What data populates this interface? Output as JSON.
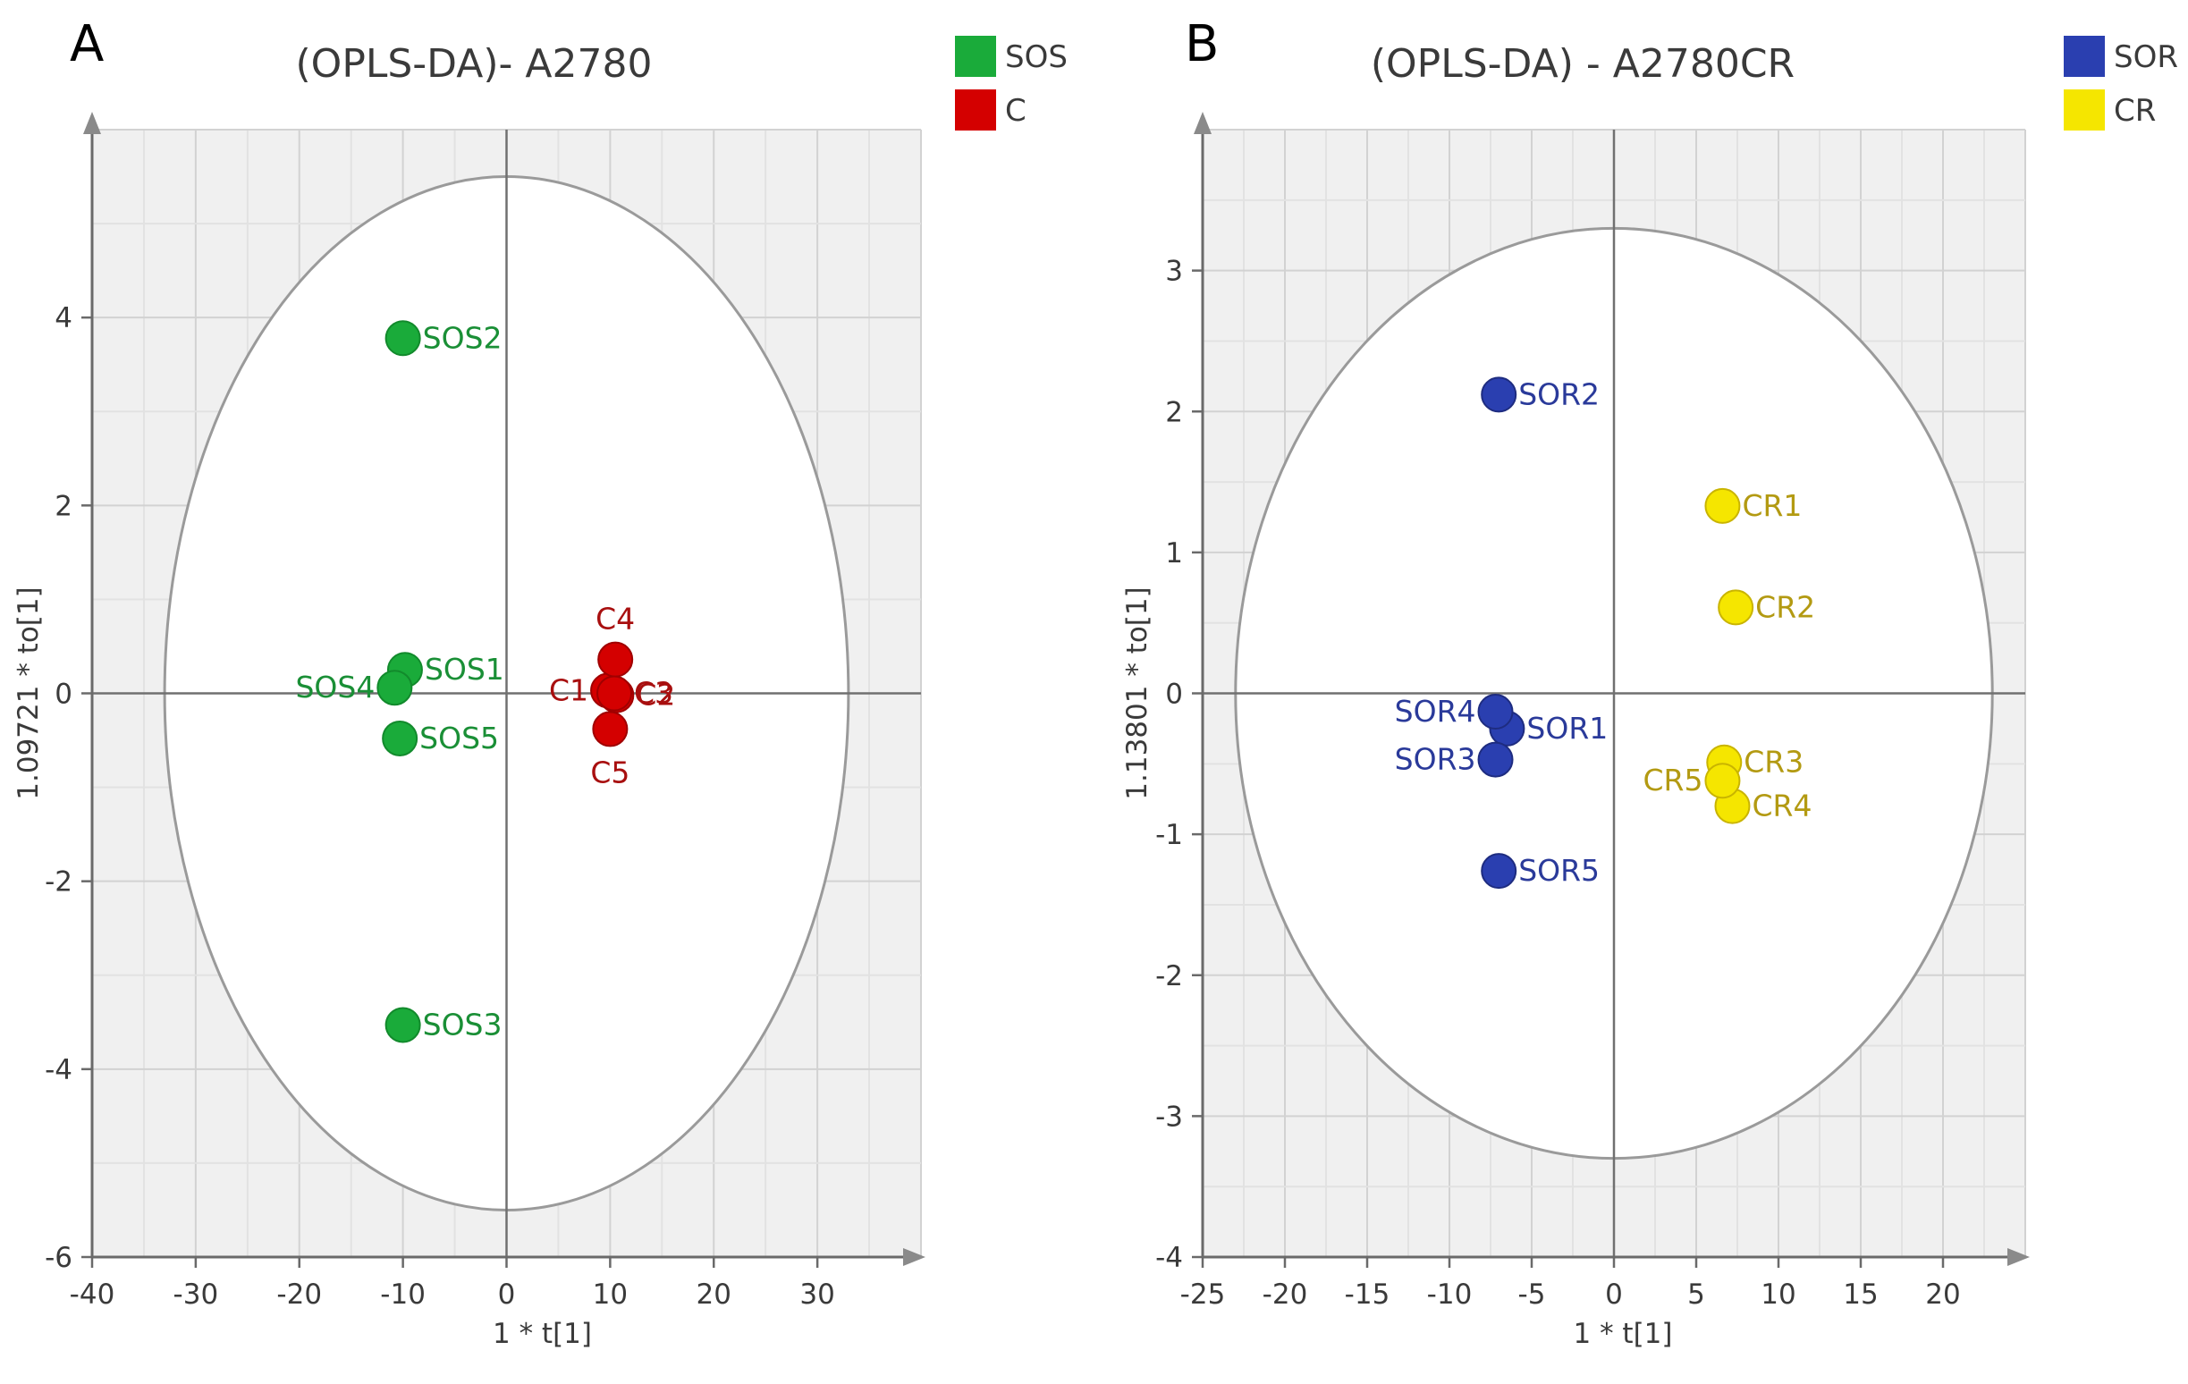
{
  "chart_data": [
    {
      "type": "scatter",
      "panel": "A",
      "title": "(OPLS-DA)- A2780",
      "xlabel": "1 * t[1]",
      "ylabel": "1.09721 * to[1]",
      "xlim": [
        -40,
        40
      ],
      "ylim": [
        -6,
        6
      ],
      "xticks": [
        -40,
        -30,
        -20,
        -10,
        0,
        10,
        20,
        30
      ],
      "yticks": [
        -6,
        -4,
        -2,
        0,
        2,
        4
      ],
      "grid": true,
      "legend_position": "top-right",
      "ellipse": {
        "cx": 0,
        "cy": 0,
        "rx": 33,
        "ry": 5.5
      },
      "series": [
        {
          "name": "SOS",
          "color": "#1aab3a",
          "text_color": "#1a8f36",
          "points": [
            {
              "label": "SOS1",
              "x": -9.8,
              "y": 0.25,
              "label_side": "right"
            },
            {
              "label": "SOS2",
              "x": -10.0,
              "y": 3.78,
              "label_side": "right"
            },
            {
              "label": "SOS3",
              "x": -10.0,
              "y": -3.53,
              "label_side": "right"
            },
            {
              "label": "SOS4",
              "x": -10.8,
              "y": 0.06,
              "label_side": "left"
            },
            {
              "label": "SOS5",
              "x": -10.3,
              "y": -0.48,
              "label_side": "right"
            }
          ]
        },
        {
          "name": "C",
          "color": "#d40000",
          "text_color": "#a80f0f",
          "points": [
            {
              "label": "C1",
              "x": 9.8,
              "y": 0.03,
              "label_side": "left"
            },
            {
              "label": "C2",
              "x": 10.6,
              "y": -0.02,
              "label_side": "right"
            },
            {
              "label": "C3",
              "x": 10.4,
              "y": 0.0,
              "label_side": "right"
            },
            {
              "label": "C4",
              "x": 10.5,
              "y": 0.36,
              "label_side": "above"
            },
            {
              "label": "C5",
              "x": 10.0,
              "y": -0.38,
              "label_side": "below"
            }
          ]
        }
      ]
    },
    {
      "type": "scatter",
      "panel": "B",
      "title": "(OPLS-DA) - A2780CR",
      "xlabel": "1 * t[1]",
      "ylabel": "1.13801 * to[1]",
      "xlim": [
        -25,
        25
      ],
      "ylim": [
        -4,
        4
      ],
      "xticks": [
        -25,
        -20,
        -15,
        -10,
        -5,
        0,
        5,
        10,
        15,
        20
      ],
      "yticks": [
        -4,
        -3,
        -2,
        -1,
        0,
        1,
        2,
        3
      ],
      "grid": true,
      "legend_position": "top-right",
      "ellipse": {
        "cx": 0,
        "cy": 0,
        "rx": 23,
        "ry": 3.3
      },
      "series": [
        {
          "name": "SOR",
          "color": "#2a3fb0",
          "text_color": "#2a3a9a",
          "points": [
            {
              "label": "SOR1",
              "x": -6.5,
              "y": -0.25,
              "label_side": "right"
            },
            {
              "label": "SOR2",
              "x": -7.0,
              "y": 2.12,
              "label_side": "right"
            },
            {
              "label": "SOR3",
              "x": -7.2,
              "y": -0.47,
              "label_side": "left"
            },
            {
              "label": "SOR4",
              "x": -7.2,
              "y": -0.13,
              "label_side": "left"
            },
            {
              "label": "SOR5",
              "x": -7.0,
              "y": -1.26,
              "label_side": "right"
            }
          ]
        },
        {
          "name": "CR",
          "color": "#f5e600",
          "text_color": "#b39a12",
          "points": [
            {
              "label": "CR1",
              "x": 6.6,
              "y": 1.33,
              "label_side": "right"
            },
            {
              "label": "CR2",
              "x": 7.4,
              "y": 0.61,
              "label_side": "right"
            },
            {
              "label": "CR3",
              "x": 6.7,
              "y": -0.49,
              "label_side": "right"
            },
            {
              "label": "CR4",
              "x": 7.2,
              "y": -0.8,
              "label_side": "right"
            },
            {
              "label": "CR5",
              "x": 6.6,
              "y": -0.62,
              "label_side": "left"
            }
          ]
        }
      ]
    }
  ]
}
